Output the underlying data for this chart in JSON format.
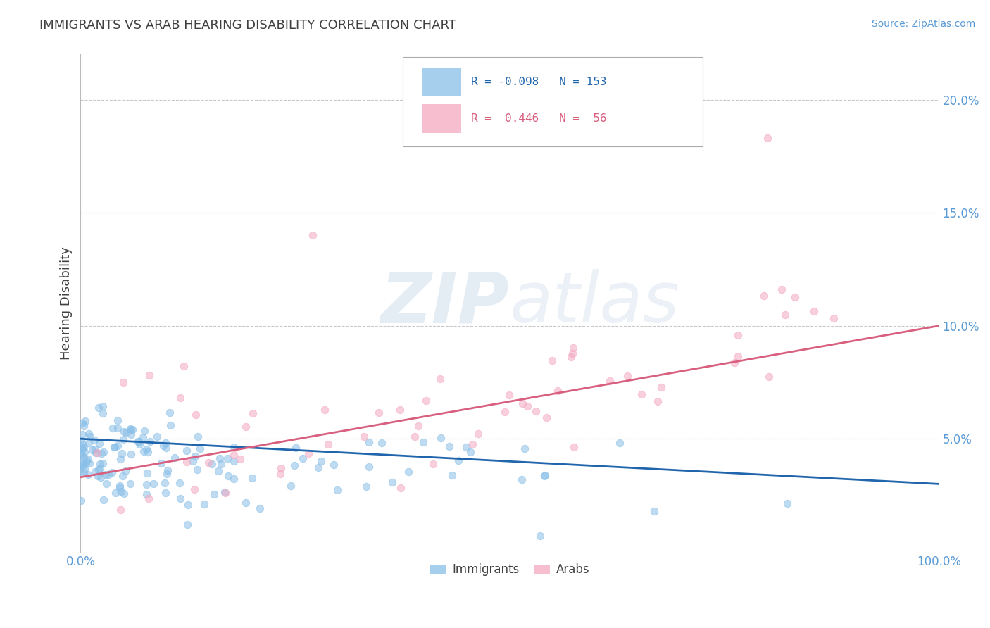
{
  "title": "IMMIGRANTS VS ARAB HEARING DISABILITY CORRELATION CHART",
  "source": "Source: ZipAtlas.com",
  "ylabel": "Hearing Disability",
  "xlim": [
    0,
    100
  ],
  "ylim": [
    0,
    22
  ],
  "yticks": [
    5,
    10,
    15,
    20
  ],
  "ytick_labels": [
    "5.0%",
    "10.0%",
    "15.0%",
    "20.0%"
  ],
  "legend_labels": [
    "Immigrants",
    "Arabs"
  ],
  "immigrants_color": "#89bfe8",
  "arabs_color": "#f4a8c0",
  "immigrants_line_color": "#2166ac",
  "arabs_line_color": "#d95f7f",
  "background_color": "#ffffff",
  "watermark_zip": "ZIP",
  "watermark_atlas": "atlas",
  "title_color": "#404040",
  "axis_color": "#5b9bd5",
  "R_immigrants": -0.098,
  "N_immigrants": 153,
  "R_arabs": 0.446,
  "N_arabs": 56,
  "seed": 7
}
